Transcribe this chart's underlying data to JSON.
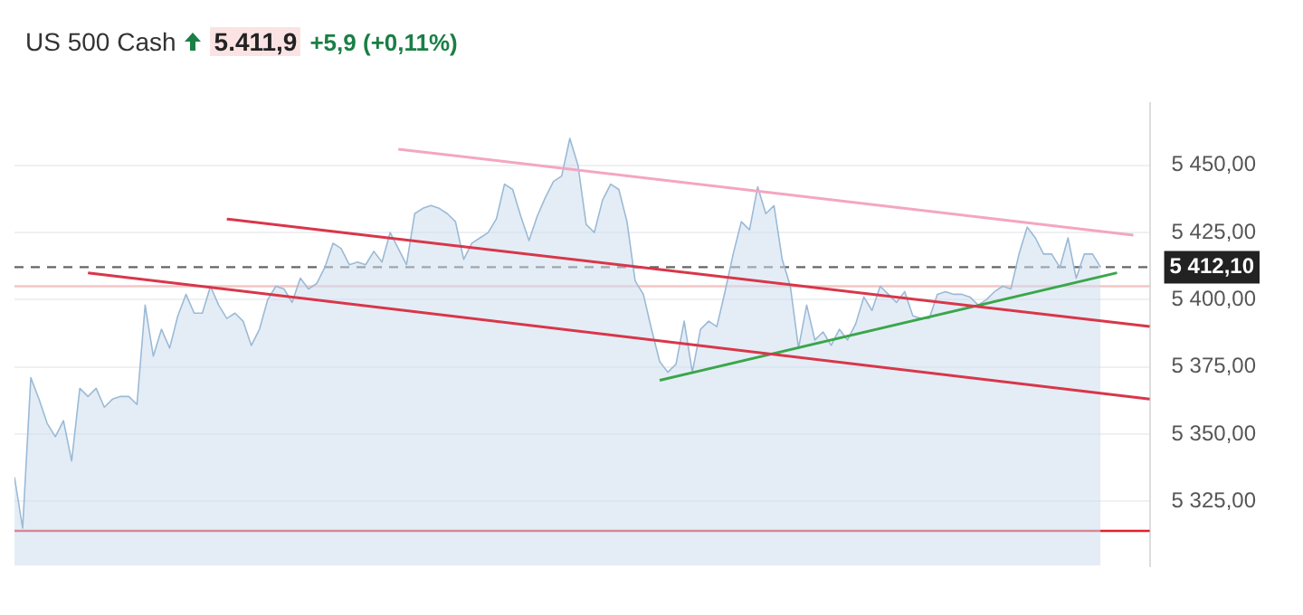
{
  "chart_data": {
    "type": "area",
    "title": "US 500 Cash",
    "annotations": [
      "5.411,9",
      "+5,9 (+0,11%)"
    ],
    "categories": [
      null,
      null,
      null,
      null,
      null,
      null,
      null,
      null,
      null,
      null,
      null,
      null,
      null,
      null,
      null,
      null,
      null,
      null,
      null,
      null,
      null,
      null,
      null,
      null,
      null,
      null,
      null,
      null,
      null,
      null,
      null,
      null,
      null,
      null,
      null,
      null,
      null,
      null,
      null,
      null,
      null,
      null,
      null,
      null,
      null,
      null,
      null,
      null,
      null,
      null,
      null,
      null,
      null,
      null,
      null,
      null,
      null,
      null,
      null,
      null,
      null,
      null,
      null,
      null,
      null,
      null,
      null,
      null,
      null,
      null,
      null,
      null,
      null,
      null,
      null,
      null,
      null,
      null,
      null,
      null,
      null,
      null,
      null,
      null,
      null,
      null,
      null,
      null,
      null,
      null,
      null,
      null,
      null,
      null,
      null,
      null,
      null,
      null,
      null,
      null,
      null,
      null,
      null,
      null,
      null,
      null,
      null,
      null,
      null,
      null,
      null,
      null,
      null,
      null,
      null,
      null,
      null,
      null,
      null,
      null,
      null,
      null,
      null,
      null,
      null,
      null,
      null,
      null,
      null,
      null,
      null,
      null,
      null,
      null,
      null,
      null,
      null,
      null,
      null,
      null
    ],
    "ylim": [
      5301,
      5473
    ],
    "yticks": [
      {
        "value": 5325,
        "label": "5 325,00"
      },
      {
        "value": 5350,
        "label": "5 350,00"
      },
      {
        "value": 5375,
        "label": "5 375,00"
      },
      {
        "value": 5400,
        "label": "5 400,00"
      },
      {
        "value": 5425,
        "label": "5 425,00"
      },
      {
        "value": 5450,
        "label": "5 450,00"
      }
    ],
    "tick_labels": "y",
    "grid": "y",
    "legend": false,
    "series": [
      {
        "color": "#9bbad6",
        "values": [
          5334,
          5315,
          5371,
          5363,
          5354,
          5349,
          5355,
          5340,
          5367,
          5364,
          5367,
          5360,
          5363,
          5364,
          5364,
          5361,
          5398,
          5379,
          5389,
          5382,
          5394,
          5402,
          5395,
          5395,
          5405,
          5398,
          5393,
          5395,
          5392,
          5383,
          5389,
          5400,
          5405,
          5404,
          5399,
          5408,
          5404,
          5406,
          5412,
          5421,
          5419,
          5413,
          5414,
          5413,
          5418,
          5414,
          5425,
          5419,
          5413,
          5432,
          5434,
          5435,
          5434,
          5432,
          5429,
          5415,
          5421,
          5423,
          5425,
          5430,
          5443,
          5441,
          5431,
          5422,
          5431,
          5438,
          5444,
          5446,
          5460,
          5450,
          5428,
          5425,
          5437,
          5443,
          5441,
          5429,
          5407,
          5402,
          5389,
          5377,
          5373,
          5376,
          5392,
          5373,
          5389,
          5392,
          5390,
          5403,
          5417,
          5429,
          5426,
          5442,
          5432,
          5435,
          5415,
          5405,
          5382,
          5398,
          5385,
          5388,
          5383,
          5389,
          5385,
          5391,
          5401,
          5396,
          5405,
          5402,
          5399,
          5403,
          5394,
          5393,
          5393,
          5402,
          5403,
          5402,
          5402,
          5401,
          5398,
          5400,
          5403,
          5405,
          5404,
          5417,
          5427,
          5423,
          5417,
          5417,
          5412,
          5423,
          5408,
          5417,
          5417,
          5412,
          null,
          null,
          null,
          null,
          null,
          null
        ]
      },
      {
        "type": "line",
        "color": "#f4a6c0",
        "values": [
          null,
          null,
          null,
          null,
          null,
          null,
          null,
          null,
          null,
          null,
          null,
          null,
          null,
          null,
          null,
          null,
          null,
          null,
          null,
          null,
          null,
          null,
          null,
          null,
          null,
          null,
          null,
          null,
          null,
          null,
          null,
          null,
          null,
          null,
          null,
          null,
          null,
          null,
          null,
          null,
          null,
          null,
          null,
          null,
          null,
          null,
          null,
          5456,
          null,
          null,
          null,
          null,
          null,
          null,
          null,
          null,
          null,
          null,
          null,
          null,
          null,
          null,
          null,
          null,
          null,
          null,
          null,
          null,
          null,
          null,
          null,
          null,
          null,
          null,
          null,
          null,
          null,
          null,
          null,
          null,
          null,
          null,
          null,
          null,
          null,
          null,
          null,
          null,
          null,
          null,
          null,
          null,
          null,
          null,
          null,
          null,
          null,
          null,
          null,
          null,
          null,
          null,
          null,
          null,
          null,
          null,
          null,
          null,
          null,
          null,
          null,
          null,
          null,
          null,
          null,
          null,
          null,
          null,
          null,
          null,
          null,
          null,
          null,
          null,
          null,
          null,
          null,
          null,
          null,
          null,
          null,
          null,
          null,
          null,
          null,
          null,
          null,
          5424,
          null,
          null
        ]
      },
      {
        "type": "line",
        "color": "#d9364a",
        "values": [
          null,
          null,
          null,
          null,
          null,
          null,
          null,
          null,
          null,
          null,
          null,
          null,
          null,
          null,
          null,
          null,
          null,
          null,
          null,
          null,
          null,
          null,
          null,
          null,
          null,
          null,
          5430,
          null,
          null,
          null,
          null,
          null,
          null,
          null,
          null,
          null,
          null,
          null,
          null,
          null,
          null,
          null,
          null,
          null,
          null,
          null,
          null,
          null,
          null,
          null,
          null,
          null,
          null,
          null,
          null,
          null,
          null,
          null,
          null,
          null,
          null,
          null,
          null,
          null,
          null,
          null,
          null,
          null,
          null,
          null,
          null,
          null,
          null,
          null,
          null,
          null,
          null,
          null,
          null,
          null,
          null,
          null,
          null,
          null,
          null,
          null,
          null,
          null,
          null,
          null,
          null,
          null,
          null,
          null,
          null,
          null,
          null,
          null,
          null,
          null,
          null,
          null,
          null,
          null,
          null,
          null,
          null,
          null,
          null,
          null,
          null,
          null,
          null,
          null,
          null,
          null,
          null,
          null,
          null,
          null,
          null,
          null,
          null,
          null,
          null,
          null,
          null,
          null,
          null,
          null,
          null,
          null,
          null,
          null,
          null,
          null,
          null,
          null,
          null,
          5390
        ]
      },
      {
        "type": "line",
        "color": "#d9364a",
        "values": [
          null,
          null,
          null,
          null,
          null,
          null,
          null,
          null,
          null,
          5410,
          null,
          null,
          null,
          null,
          null,
          null,
          null,
          null,
          null,
          null,
          null,
          null,
          null,
          null,
          null,
          null,
          null,
          null,
          null,
          null,
          null,
          null,
          null,
          null,
          null,
          null,
          null,
          null,
          null,
          null,
          null,
          null,
          null,
          null,
          null,
          null,
          null,
          null,
          null,
          null,
          null,
          null,
          null,
          null,
          null,
          null,
          null,
          null,
          null,
          null,
          null,
          null,
          null,
          null,
          null,
          null,
          null,
          null,
          null,
          null,
          null,
          null,
          null,
          null,
          null,
          null,
          null,
          null,
          null,
          null,
          null,
          null,
          null,
          null,
          null,
          null,
          null,
          null,
          null,
          null,
          null,
          null,
          null,
          null,
          null,
          null,
          null,
          null,
          null,
          null,
          null,
          null,
          null,
          null,
          null,
          null,
          null,
          null,
          null,
          null,
          null,
          null,
          null,
          null,
          null,
          null,
          null,
          null,
          null,
          null,
          null,
          null,
          null,
          null,
          null,
          null,
          null,
          null,
          null,
          null,
          null,
          null,
          null,
          null,
          null,
          null,
          null,
          null,
          null,
          5363
        ]
      },
      {
        "type": "line",
        "color": "#3aa64a",
        "values": [
          null,
          null,
          null,
          null,
          null,
          null,
          null,
          null,
          null,
          null,
          null,
          null,
          null,
          null,
          null,
          null,
          null,
          null,
          null,
          null,
          null,
          null,
          null,
          null,
          null,
          null,
          null,
          null,
          null,
          null,
          null,
          null,
          null,
          null,
          null,
          null,
          null,
          null,
          null,
          null,
          null,
          null,
          null,
          null,
          null,
          null,
          null,
          null,
          null,
          null,
          null,
          null,
          null,
          null,
          null,
          null,
          null,
          null,
          null,
          null,
          null,
          null,
          null,
          null,
          null,
          null,
          null,
          null,
          null,
          null,
          null,
          null,
          null,
          null,
          null,
          null,
          null,
          null,
          null,
          5370,
          null,
          null,
          null,
          null,
          null,
          null,
          null,
          null,
          null,
          null,
          null,
          null,
          null,
          null,
          null,
          null,
          null,
          null,
          null,
          null,
          null,
          null,
          null,
          null,
          null,
          null,
          null,
          null,
          null,
          null,
          null,
          null,
          null,
          null,
          null,
          null,
          null,
          null,
          null,
          null,
          null,
          null,
          null,
          null,
          null,
          null,
          null,
          null,
          null,
          null,
          null,
          null,
          null,
          null,
          null,
          5410,
          null,
          null,
          null,
          null
        ]
      }
    ],
    "ref_lines": [
      {
        "axis": "y",
        "value": 5314,
        "color": "#e0202a",
        "line_style": "solid"
      },
      {
        "axis": "y",
        "value": 5405,
        "color": "#f3c6c6",
        "line_style": "solid"
      },
      {
        "axis": "y",
        "value": 5412.1,
        "label": "5 412,10",
        "color": "#666666",
        "line_style": "dashed"
      }
    ]
  }
}
